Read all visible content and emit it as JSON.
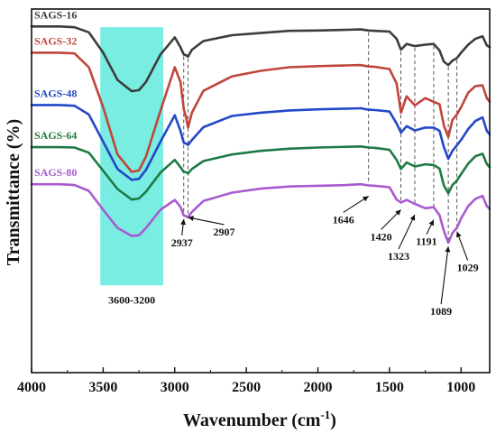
{
  "chart_data": {
    "type": "line",
    "xlabel": "Wavenumber (cm",
    "xlabel_sup": "-1",
    "xlabel_end": ")",
    "ylabel": "Transmittance (%)",
    "xlim": [
      4000,
      800
    ],
    "x_reversed": true,
    "x_ticks": [
      4000,
      3500,
      3000,
      2500,
      2000,
      1500,
      1000
    ],
    "x_tick_labels": [
      "4000",
      "3500",
      "3000",
      "2500",
      "2000",
      "1500",
      "1000"
    ],
    "ylim": [
      0,
      100
    ],
    "grid": false,
    "legend": "inline labels at top-left of each curve",
    "highlight_band": {
      "from": 3520,
      "to": 3080,
      "label": "3600-3200",
      "color": "#46e6d8"
    },
    "series": [
      {
        "name": "SAGS-16",
        "color": "#3c3c3c",
        "x": [
          4000,
          3800,
          3700,
          3600,
          3500,
          3400,
          3300,
          3250,
          3200,
          3100,
          3000,
          2960,
          2937,
          2920,
          2907,
          2880,
          2800,
          2600,
          2400,
          2200,
          2000,
          1800,
          1700,
          1646,
          1600,
          1500,
          1450,
          1420,
          1380,
          1323,
          1250,
          1191,
          1150,
          1120,
          1089,
          1060,
          1029,
          1000,
          950,
          900,
          850,
          820,
          800
        ],
        "y": [
          95.2,
          95.2,
          95.0,
          93.6,
          88.0,
          80.5,
          77.4,
          77.7,
          80.0,
          87.5,
          92.2,
          89.5,
          87.5,
          87.3,
          86.9,
          88.8,
          91.2,
          92.8,
          93.4,
          94.0,
          94.1,
          94.3,
          94.4,
          94.1,
          94.0,
          93.8,
          91.8,
          88.8,
          90.4,
          89.8,
          90.2,
          90.4,
          88.6,
          85.5,
          84.6,
          85.8,
          86.5,
          88.0,
          90.2,
          91.8,
          92.5,
          90.0,
          89.5
        ]
      },
      {
        "name": "SAGS-32",
        "color": "#c0453a",
        "x": [
          4000,
          3800,
          3700,
          3600,
          3500,
          3400,
          3300,
          3250,
          3200,
          3100,
          3000,
          2960,
          2937,
          2920,
          2907,
          2880,
          2800,
          2600,
          2400,
          2200,
          2000,
          1800,
          1700,
          1646,
          1600,
          1500,
          1450,
          1420,
          1380,
          1323,
          1250,
          1191,
          1150,
          1120,
          1089,
          1060,
          1029,
          1000,
          950,
          900,
          850,
          820,
          800
        ],
        "y": [
          88.0,
          88.0,
          87.8,
          84.0,
          73.0,
          60.0,
          55.2,
          55.6,
          59.5,
          72.0,
          84.0,
          80.0,
          72.5,
          70.0,
          67.4,
          71.5,
          77.5,
          81.5,
          83.0,
          84.0,
          84.3,
          84.5,
          84.6,
          84.2,
          84.1,
          83.5,
          79.5,
          71.5,
          76.0,
          73.5,
          75.5,
          74.5,
          73.8,
          68.0,
          64.8,
          69.5,
          71.0,
          73.0,
          77.0,
          78.8,
          79.0,
          75.5,
          74.5
        ]
      },
      {
        "name": "SAGS-48",
        "color": "#2347c8",
        "x": [
          4000,
          3800,
          3700,
          3600,
          3500,
          3400,
          3300,
          3250,
          3200,
          3100,
          3000,
          2960,
          2937,
          2920,
          2907,
          2880,
          2800,
          2600,
          2400,
          2200,
          2000,
          1800,
          1700,
          1646,
          1600,
          1500,
          1450,
          1420,
          1380,
          1323,
          1250,
          1191,
          1150,
          1120,
          1089,
          1060,
          1029,
          1000,
          950,
          900,
          850,
          820,
          800
        ],
        "y": [
          73.6,
          73.6,
          73.4,
          71.0,
          63.5,
          56.0,
          53.0,
          53.3,
          55.8,
          63.5,
          70.8,
          66.5,
          63.2,
          63.0,
          62.6,
          64.0,
          67.5,
          70.6,
          71.5,
          72.1,
          72.4,
          72.6,
          72.7,
          72.3,
          72.2,
          71.8,
          68.5,
          66.0,
          67.8,
          66.6,
          67.4,
          67.4,
          66.5,
          62.0,
          58.8,
          61.0,
          62.5,
          64.0,
          67.0,
          69.2,
          70.2,
          66.5,
          65.5
        ]
      },
      {
        "name": "SAGS-64",
        "color": "#1e7a44",
        "x": [
          4000,
          3800,
          3700,
          3600,
          3500,
          3400,
          3300,
          3250,
          3200,
          3100,
          3000,
          2960,
          2937,
          2920,
          2907,
          2880,
          2800,
          2600,
          2400,
          2200,
          2000,
          1800,
          1700,
          1646,
          1600,
          1500,
          1450,
          1420,
          1380,
          1323,
          1250,
          1191,
          1150,
          1120,
          1089,
          1060,
          1029,
          1000,
          950,
          900,
          850,
          820,
          800
        ],
        "y": [
          62.0,
          62.0,
          61.9,
          60.5,
          55.5,
          50.5,
          47.6,
          47.9,
          49.8,
          55.0,
          58.5,
          56.5,
          55.2,
          55.1,
          54.8,
          56.0,
          58.2,
          60.0,
          61.0,
          61.6,
          61.9,
          62.1,
          62.2,
          61.9,
          61.8,
          61.3,
          58.5,
          56.0,
          57.8,
          56.7,
          57.3,
          57.1,
          56.1,
          51.5,
          49.3,
          51.6,
          52.8,
          54.6,
          57.5,
          59.5,
          60.2,
          57.4,
          56.5
        ]
      },
      {
        "name": "SAGS-80",
        "color": "#a85ad0",
        "x": [
          4000,
          3800,
          3700,
          3600,
          3500,
          3400,
          3300,
          3250,
          3200,
          3100,
          3000,
          2960,
          2937,
          2920,
          2907,
          2880,
          2800,
          2600,
          2400,
          2200,
          2000,
          1800,
          1700,
          1646,
          1600,
          1500,
          1450,
          1420,
          1380,
          1323,
          1250,
          1191,
          1150,
          1120,
          1089,
          1060,
          1029,
          1000,
          950,
          900,
          850,
          820,
          800
        ],
        "y": [
          51.8,
          51.8,
          51.6,
          50.0,
          44.8,
          39.8,
          37.6,
          37.8,
          39.8,
          44.8,
          47.5,
          45.6,
          43.2,
          43.0,
          42.7,
          44.2,
          47.2,
          49.5,
          50.6,
          51.2,
          51.4,
          51.6,
          51.8,
          51.5,
          51.4,
          51.0,
          47.6,
          46.8,
          47.5,
          46.4,
          45.2,
          45.5,
          43.3,
          39.0,
          35.7,
          38.4,
          39.8,
          42.4,
          45.8,
          47.8,
          48.6,
          45.8,
          45.0
        ]
      }
    ],
    "peak_markers": [
      {
        "wavenumber": 2937,
        "label": "2937"
      },
      {
        "wavenumber": 2907,
        "label": "2907"
      },
      {
        "wavenumber": 1646,
        "label": "1646"
      },
      {
        "wavenumber": 1420,
        "label": "1420"
      },
      {
        "wavenumber": 1323,
        "label": "1323"
      },
      {
        "wavenumber": 1191,
        "label": "1191"
      },
      {
        "wavenumber": 1089,
        "label": "1089"
      },
      {
        "wavenumber": 1029,
        "label": "1029"
      }
    ]
  }
}
